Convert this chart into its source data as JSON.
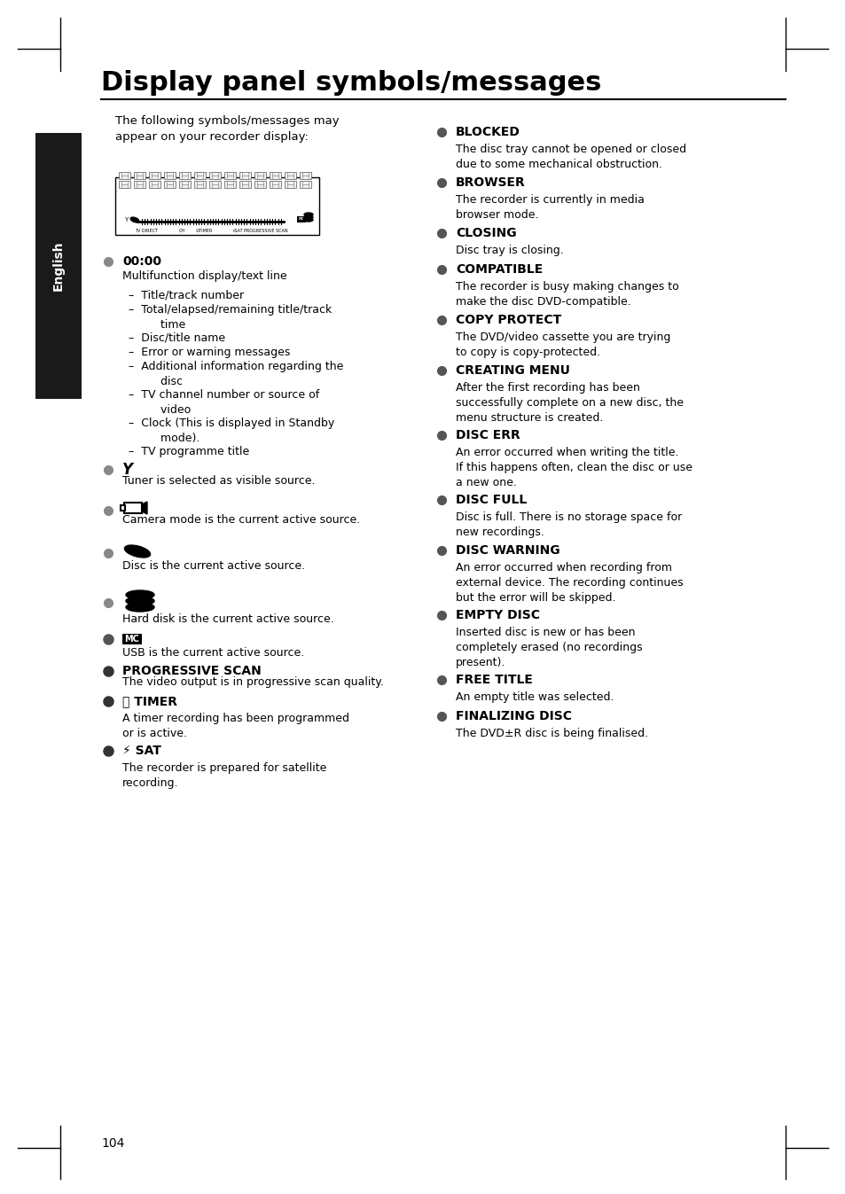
{
  "title": "Display panel symbols/messages",
  "bg_color": "#ffffff",
  "text_color": "#000000",
  "page_number": "104",
  "sidebar_color": "#1a1a1a",
  "sidebar_text": "English",
  "left_col_items": [
    {
      "type": "intro",
      "text": "The following symbols/messages may\nappear on your recorder display:"
    },
    {
      "type": "display_image",
      "placeholder": true
    },
    {
      "type": "bullet_symbol",
      "symbol": "00:00",
      "symbol_bold": true,
      "desc": "Multifunction display/text line",
      "subitems": [
        "Title/track number",
        "Total/elapsed/remaining title/track\n       time",
        "Disc/title name",
        "Error or warning messages",
        "Additional information regarding the\n       disc",
        "TV channel number or source of\n       video",
        "Clock (This is displayed in Standby\n       mode).",
        "TV programme title"
      ]
    },
    {
      "type": "bullet_symbol",
      "symbol": "Υ",
      "symbol_type": "tuner",
      "desc": "Tuner is selected as visible source."
    },
    {
      "type": "bullet_symbol",
      "symbol": "camera",
      "symbol_type": "camera",
      "desc": "Camera mode is the current active source."
    },
    {
      "type": "bullet_symbol",
      "symbol": "disc",
      "symbol_type": "disc",
      "desc": "Disc is the current active source."
    },
    {
      "type": "bullet_symbol",
      "symbol": "harddisk",
      "symbol_type": "harddisk",
      "desc": "Hard disk is the current active source."
    },
    {
      "type": "bullet_symbol",
      "symbol": "MC",
      "symbol_type": "mc_box",
      "desc": "USB is the current active source."
    },
    {
      "type": "bullet_bold",
      "symbol": "PROGRESSIVE SCAN",
      "desc": "The video output is in progressive scan quality."
    },
    {
      "type": "bullet_bold",
      "symbol": "⏱ TIMER",
      "symbol_prefix": "clock",
      "desc": "A timer recording has been programmed\nor is active."
    },
    {
      "type": "bullet_bold",
      "symbol": "⚡ SAT",
      "symbol_prefix": "sat",
      "desc": "The recorder is prepared for satellite\nrecording."
    }
  ],
  "right_col_items": [
    {
      "type": "bullet_bold",
      "symbol": "BLOCKED",
      "desc": "The disc tray cannot be opened or closed\ndue to some mechanical obstruction."
    },
    {
      "type": "bullet_bold",
      "symbol": "BROWSER",
      "desc": "The recorder is currently in media\nbrowser mode."
    },
    {
      "type": "bullet_bold",
      "symbol": "CLOSING",
      "desc": "Disc tray is closing."
    },
    {
      "type": "bullet_bold",
      "symbol": "COMPATIBLE",
      "desc": "The recorder is busy making changes to\nmake the disc DVD-compatible."
    },
    {
      "type": "bullet_bold",
      "symbol": "COPY PROTECT",
      "desc": "The DVD/video cassette you are trying\nto copy is copy-protected."
    },
    {
      "type": "bullet_bold",
      "symbol": "CREATING MENU",
      "desc": "After the first recording has been\nsuccessfully complete on a new disc, the\nmenu structure is created."
    },
    {
      "type": "bullet_bold",
      "symbol": "DISC ERR",
      "desc": "An error occurred when writing the title.\nIf this happens often, clean the disc or use\na new one."
    },
    {
      "type": "bullet_bold",
      "symbol": "DISC FULL",
      "desc": "Disc is full. There is no storage space for\nnew recordings."
    },
    {
      "type": "bullet_bold",
      "symbol": "DISC WARNING",
      "desc": "An error occurred when recording from\nexternal device. The recording continues\nbut the error will be skipped."
    },
    {
      "type": "bullet_bold",
      "symbol": "EMPTY DISC",
      "desc": "Inserted disc is new or has been\ncompletely erased (no recordings\npresent)."
    },
    {
      "type": "bullet_bold",
      "symbol": "FREE TITLE",
      "desc": "An empty title was selected."
    },
    {
      "type": "bullet_bold",
      "symbol": "FINALIZING DISC",
      "desc": "The DVD±R disc is being finalised."
    }
  ]
}
